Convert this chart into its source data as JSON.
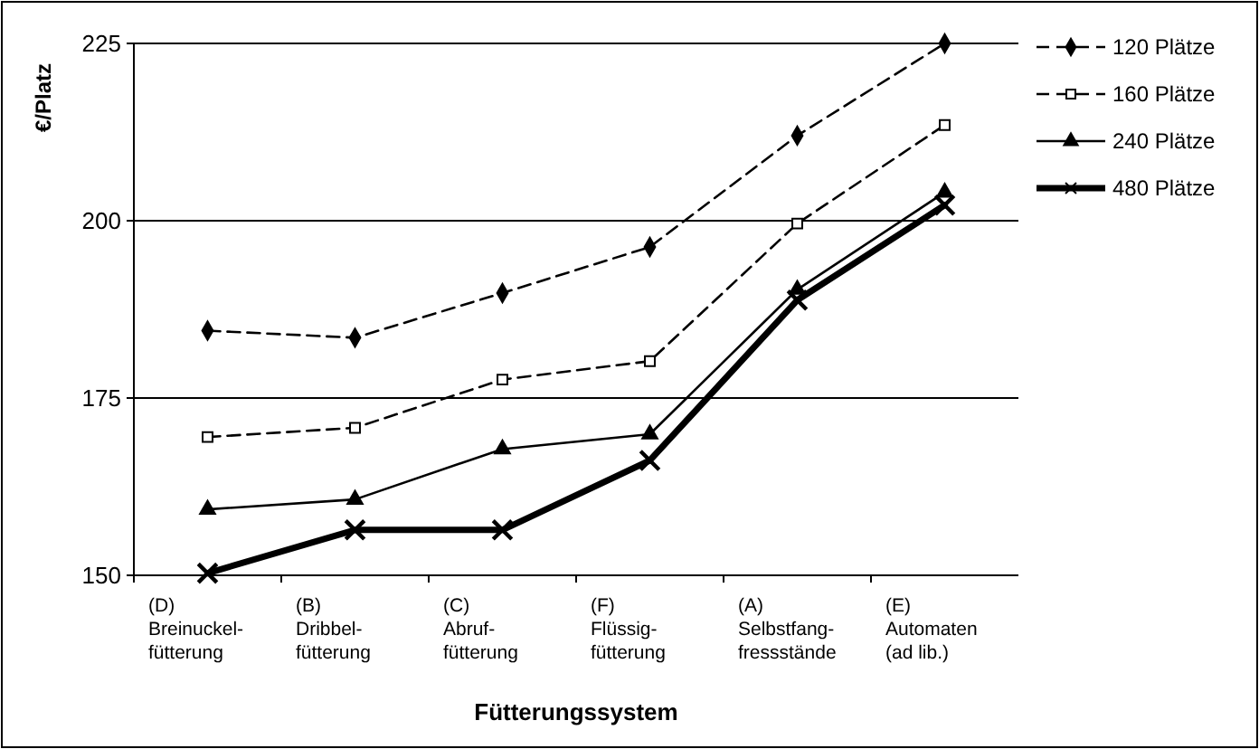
{
  "chart_data": {
    "type": "line",
    "xlabel": "Fütterungssystem",
    "ylabel": "€/Platz",
    "categories": [
      "(D)\nBreinuckel-\nfütterung",
      "(B)\nDribbel-\nfütterung",
      "(C)\nAbruf-\nfütterung",
      "(F)\nFlüssig-\nfütterung",
      "(A)\nSelbstfang-\nfressstände",
      "(E)\nAutomaten\n(ad lib.)"
    ],
    "series": [
      {
        "name": "120 Plätze",
        "color": "#000000",
        "marker": "diamond",
        "line_style": "dashed",
        "values": [
          184.5,
          183.5,
          189.8,
          196.3,
          212,
          225
        ]
      },
      {
        "name": "160 Plätze",
        "color": "#000000",
        "marker": "square",
        "line_style": "dashed",
        "values": [
          169.5,
          170.8,
          177.6,
          180.2,
          199.6,
          213.5
        ]
      },
      {
        "name": "240 Plätze",
        "color": "#000000",
        "marker": "triangle",
        "line_style": "solid",
        "values": [
          159.3,
          160.7,
          167.8,
          169.9,
          190.3,
          204
        ]
      },
      {
        "name": "480 Plätze",
        "color": "#000000",
        "marker": "cross",
        "line_style": "solid",
        "values": [
          150.3,
          156.4,
          156.4,
          166.2,
          188.8,
          202.2
        ]
      }
    ],
    "ylim": [
      150,
      225
    ],
    "yticks": [
      150,
      175,
      200,
      225
    ],
    "grid": "y",
    "legend": "right"
  }
}
